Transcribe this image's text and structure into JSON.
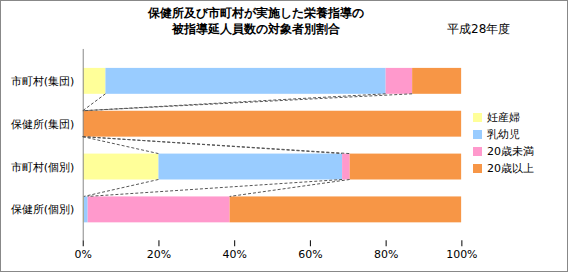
{
  "chart_data": {
    "type": "bar",
    "title": "保健所及び市町村が実施した栄養指導の\n被指導延人員数の対象者別割合",
    "subtitle": "平成28年度",
    "orientation": "horizontal",
    "stacked": true,
    "categories": [
      "市町村(集団)",
      "保健所(集団)",
      "市町村(個別)",
      "保健所(個別)"
    ],
    "series": [
      {
        "name": "妊産婦",
        "color": "#FFFF99",
        "values": [
          6,
          0,
          20,
          0.3
        ]
      },
      {
        "name": "乳幼児",
        "color": "#99CCFF",
        "values": [
          74,
          0,
          48.5,
          1
        ]
      },
      {
        "name": "20歳未満",
        "color": "#FF99CC",
        "values": [
          7,
          0,
          2,
          37.5
        ]
      },
      {
        "name": "20歳以上",
        "color": "#F79646",
        "values": [
          13,
          100,
          29.5,
          61.2
        ]
      }
    ],
    "xlim": [
      0,
      100
    ],
    "xticks": [
      {
        "value": 0,
        "label": "0%"
      },
      {
        "value": 20,
        "label": "20%"
      },
      {
        "value": 40,
        "label": "40%"
      },
      {
        "value": 60,
        "label": "60%"
      },
      {
        "value": 80,
        "label": "80%"
      },
      {
        "value": 100,
        "label": "100%"
      }
    ],
    "grid": false,
    "legend": "right"
  }
}
